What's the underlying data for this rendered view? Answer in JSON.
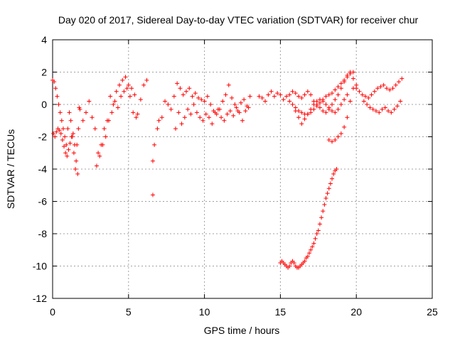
{
  "chart_data": {
    "type": "scatter",
    "title": "Day 020 of 2017, Sidereal Day-to-day VTEC variation (SDTVAR) for receiver chur",
    "xlabel": "GPS time / hours",
    "ylabel": "SDTVAR / TECUs",
    "xlim": [
      0,
      25
    ],
    "ylim": [
      -12,
      4
    ],
    "xticks": [
      0,
      5,
      10,
      15,
      20,
      25
    ],
    "yticks": [
      -12,
      -10,
      -8,
      -6,
      -4,
      -2,
      0,
      2,
      4
    ],
    "xtick_labels": [
      "0",
      "5",
      "10",
      "15",
      "20",
      "25"
    ],
    "ytick_labels": [
      "-12",
      "-10",
      "-8",
      "-6",
      "-4",
      "-2",
      "0",
      "2",
      "4"
    ],
    "grid": true,
    "marker": "+",
    "color": "#ff0000",
    "series": [
      {
        "name": "SDTVAR",
        "x": [
          0.0,
          0.1,
          0.2,
          0.3,
          0.4,
          0.5,
          0.6,
          0.7,
          0.8,
          0.9,
          1.0,
          1.1,
          1.2,
          1.3,
          1.4,
          1.5,
          1.6,
          1.7,
          1.8,
          0.05,
          0.15,
          0.25,
          0.35,
          0.45,
          0.55,
          0.65,
          0.75,
          0.85,
          0.95,
          1.05,
          1.15,
          1.25,
          1.35,
          1.45,
          1.55,
          1.65,
          1.75,
          2.0,
          2.2,
          2.4,
          2.6,
          2.8,
          3.0,
          3.2,
          3.4,
          3.6,
          3.8,
          4.0,
          4.2,
          4.4,
          4.6,
          4.8,
          5.0,
          5.2,
          5.4,
          5.6,
          5.8,
          6.0,
          6.2,
          2.9,
          3.1,
          3.3,
          3.5,
          3.7,
          3.9,
          4.1,
          4.3,
          4.5,
          4.7,
          4.9,
          5.1,
          5.3,
          5.5,
          6.6,
          6.7,
          6.9,
          7.0,
          7.2,
          7.4,
          7.6,
          7.8,
          8.0,
          8.2,
          8.4,
          8.6,
          8.8,
          9.0,
          9.2,
          9.4,
          9.6,
          9.8,
          10.0,
          10.2,
          10.4,
          10.6,
          10.8,
          11.0,
          11.2,
          11.4,
          11.6,
          11.8,
          12.0,
          12.2,
          12.4,
          12.6,
          12.8,
          13.0,
          8.1,
          8.3,
          8.5,
          8.7,
          8.9,
          9.1,
          9.3,
          9.5,
          9.7,
          9.9,
          10.1,
          10.3,
          10.5,
          10.7,
          10.9,
          11.1,
          11.3,
          11.5,
          11.7,
          11.9,
          12.1,
          12.3,
          12.5,
          12.7,
          12.9,
          13.6,
          13.8,
          14.0,
          14.2,
          14.4,
          14.6,
          14.8,
          15.0,
          15.2,
          15.4,
          15.6,
          15.8,
          16.0,
          16.2,
          16.4,
          16.6,
          16.8,
          17.0,
          17.2,
          17.4,
          17.6,
          17.8,
          18.0,
          18.2,
          18.4,
          18.6,
          18.8,
          19.0,
          19.2,
          19.4,
          19.6,
          19.8,
          20.0,
          15.6,
          15.8,
          16.0,
          16.2,
          16.4,
          16.6,
          16.8,
          17.0,
          17.2,
          17.4,
          17.6,
          17.8,
          18.0,
          18.2,
          18.4,
          18.6,
          18.8,
          19.0,
          19.2,
          19.4,
          19.6,
          19.8,
          16.0,
          16.2,
          16.4,
          16.6,
          16.8,
          17.0,
          17.2,
          17.4,
          17.6,
          17.8,
          18.0,
          18.2,
          18.4,
          18.6,
          18.8,
          19.0,
          19.2,
          19.4,
          18.2,
          18.4,
          18.6,
          18.8,
          19.0,
          19.2,
          19.4,
          19.6,
          19.8,
          15.0,
          15.1,
          15.2,
          15.3,
          15.4,
          15.5,
          15.6,
          15.7,
          15.8,
          15.9,
          16.0,
          16.1,
          16.2,
          16.3,
          16.4,
          16.5,
          16.6,
          16.7,
          16.8,
          16.9,
          17.0,
          17.1,
          17.2,
          17.3,
          17.4,
          17.5,
          17.6,
          17.7,
          17.8,
          17.9,
          18.0,
          18.1,
          18.2,
          18.3,
          18.4,
          18.5,
          18.6,
          18.7,
          20.0,
          20.2,
          20.4,
          20.6,
          20.8,
          21.0,
          21.2,
          21.4,
          21.6,
          21.8,
          22.0,
          22.2,
          22.4,
          22.6,
          22.8,
          23.0,
          20.5,
          20.7,
          20.9,
          21.1,
          21.3,
          21.5,
          21.7,
          21.9,
          22.1,
          22.3,
          22.5,
          22.7,
          22.9,
          6.6
        ],
        "y": [
          1.5,
          1.4,
          1.0,
          0.5,
          0.0,
          -0.5,
          -1.0,
          -1.5,
          -2.0,
          -2.5,
          -1.5,
          -0.5,
          -1.0,
          -2.0,
          -3.0,
          -4.0,
          -2.5,
          -1.5,
          -0.3,
          -1.8,
          -2.0,
          -1.7,
          -1.5,
          -1.6,
          -1.8,
          -2.2,
          -2.6,
          -3.0,
          -3.2,
          -2.8,
          -2.4,
          -2.0,
          -1.8,
          -2.5,
          -3.5,
          -4.3,
          -0.2,
          -1.0,
          -0.5,
          0.2,
          -0.8,
          -1.5,
          -3.0,
          -2.5,
          -1.5,
          -1.0,
          0.5,
          0.0,
          0.8,
          1.2,
          1.5,
          1.7,
          1.2,
          1.0,
          0.6,
          -0.6,
          0.3,
          1.2,
          1.5,
          -3.8,
          -3.2,
          -2.5,
          -2.0,
          -1.0,
          -0.5,
          0.2,
          -0.2,
          0.5,
          0.8,
          1.0,
          0.5,
          -0.5,
          -0.8,
          -3.5,
          -2.5,
          -1.5,
          -1.0,
          -0.8,
          0.2,
          0.0,
          -0.3,
          0.5,
          1.3,
          1.0,
          0.6,
          0.8,
          1.0,
          0.5,
          0.7,
          0.4,
          0.3,
          0.2,
          0.5,
          0.0,
          -0.4,
          -0.6,
          -0.3,
          0.2,
          0.6,
          1.2,
          0.4,
          0.0,
          -0.4,
          0.1,
          0.3,
          -0.1,
          0.5,
          -1.5,
          -0.5,
          -1.2,
          -0.8,
          -0.3,
          -0.6,
          0.0,
          -0.5,
          -0.8,
          -1.0,
          -0.6,
          -0.8,
          -1.2,
          -0.5,
          -0.3,
          -0.8,
          -1.0,
          -0.6,
          -0.4,
          -0.7,
          -0.2,
          -0.5,
          -1.0,
          -0.4,
          -0.2,
          0.5,
          0.4,
          0.2,
          0.6,
          0.8,
          0.5,
          0.7,
          0.6,
          0.3,
          0.5,
          0.6,
          0.8,
          0.7,
          0.5,
          0.4,
          0.6,
          0.8,
          0.6,
          0.2,
          0.0,
          -0.2,
          -0.4,
          -0.5,
          -0.3,
          0.0,
          0.3,
          0.6,
          1.0,
          1.4,
          1.8,
          2.0,
          1.6,
          1.2,
          0.2,
          0.0,
          -0.2,
          -0.4,
          -0.5,
          -0.6,
          -0.6,
          -0.5,
          -0.3,
          -0.1,
          0.1,
          0.3,
          0.5,
          0.6,
          0.7,
          0.9,
          1.1,
          1.3,
          1.5,
          1.7,
          1.9,
          2.0,
          -0.4,
          -0.8,
          -1.2,
          -0.9,
          -0.6,
          -0.3,
          0.0,
          0.2,
          0.3,
          0.2,
          0.0,
          -0.2,
          -0.4,
          -0.5,
          -0.3,
          0.0,
          0.3,
          0.6,
          -2.2,
          -2.3,
          -2.2,
          -2.0,
          -1.8,
          -1.4,
          -0.8,
          0.2,
          1.0,
          -9.8,
          -9.7,
          -9.8,
          -9.9,
          -10.0,
          -10.1,
          -10.0,
          -9.8,
          -9.7,
          -9.8,
          -10.0,
          -10.1,
          -10.1,
          -10.0,
          -9.9,
          -9.8,
          -9.7,
          -9.5,
          -9.4,
          -9.2,
          -9.0,
          -8.8,
          -8.6,
          -8.3,
          -8.0,
          -7.8,
          -7.4,
          -7.0,
          -6.6,
          -6.2,
          -5.8,
          -5.5,
          -5.2,
          -4.9,
          -4.6,
          -4.3,
          -4.1,
          -4.0,
          1.0,
          0.8,
          0.6,
          0.5,
          0.4,
          0.6,
          0.8,
          1.0,
          1.1,
          1.2,
          1.0,
          0.9,
          1.0,
          1.2,
          1.4,
          1.6,
          0.2,
          0.0,
          -0.2,
          -0.3,
          -0.4,
          -0.5,
          -0.3,
          -0.2,
          -0.4,
          -0.5,
          -0.3,
          -0.1,
          0.2,
          -5.6
        ]
      }
    ]
  }
}
